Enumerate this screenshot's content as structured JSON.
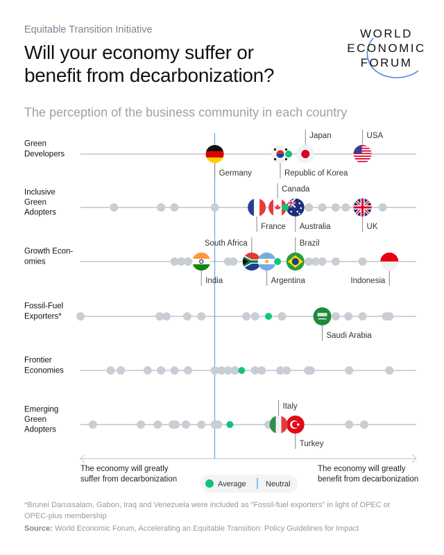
{
  "header": {
    "kicker": "Equitable Transition Initiative",
    "title_lines": [
      "Will your economy suffer or",
      "benefit from decarbonization?"
    ],
    "subtitle": "The perception of the business community in each country",
    "logo_lines": [
      "WORLD",
      "ECONOMIC",
      "FORUM"
    ]
  },
  "colors": {
    "dot": "#c9ced4",
    "average": "#10c47a",
    "neutral": "#4a9ad8",
    "rowline": "#b5b9be"
  },
  "chart_data": {
    "type": "scatter",
    "title": "",
    "xlim": [
      0,
      100
    ],
    "neutral": 40,
    "x_axis_left_label": [
      "The economy will greatly",
      "suffer from decarbonization"
    ],
    "x_axis_right_label": [
      "The economy will greatly",
      "benefit from decarbonization"
    ],
    "legend": {
      "average": "Average",
      "neutral": "Neutral"
    },
    "rows": [
      {
        "label": [
          "Green",
          "Developers"
        ],
        "average": 62,
        "others": [],
        "countries": [
          {
            "name": "Germany",
            "flag": "de",
            "x": 40,
            "label": "below-right"
          },
          {
            "name": "Republic of Korea",
            "flag": "kr",
            "x": 59.5,
            "label": "below-right"
          },
          {
            "name": "Japan",
            "flag": "jp",
            "x": 67,
            "label": "above-right"
          },
          {
            "name": "USA",
            "flag": "us",
            "x": 84,
            "label": "above-right"
          }
        ]
      },
      {
        "label": [
          "Inclusive",
          "Green",
          "Adopters"
        ],
        "average": 61,
        "others": [
          10,
          24,
          28,
          40,
          68,
          72,
          76,
          79,
          90
        ],
        "countries": [
          {
            "name": "France",
            "flag": "fr",
            "x": 52.5,
            "label": "below-right"
          },
          {
            "name": "Canada",
            "flag": "ca",
            "x": 58.7,
            "label": "above-right"
          },
          {
            "name": "Australia",
            "flag": "au",
            "x": 64,
            "label": "below-right"
          },
          {
            "name": "UK",
            "flag": "gb",
            "x": 84,
            "label": "below-right"
          }
        ]
      },
      {
        "label": [
          "Growth Econ-",
          "omies"
        ],
        "average": 58.7,
        "others": [
          28,
          30,
          32,
          44,
          45.5,
          68,
          70,
          72,
          76,
          84
        ],
        "countries": [
          {
            "name": "India",
            "flag": "in",
            "x": 36,
            "label": "below-right"
          },
          {
            "name": "South Africa",
            "flag": "za",
            "x": 51,
            "label": "above-left"
          },
          {
            "name": "Argentina",
            "flag": "ar",
            "x": 55.5,
            "label": "below-right"
          },
          {
            "name": "Brazil",
            "flag": "br",
            "x": 64,
            "label": "above-right"
          },
          {
            "name": "Indonesia",
            "flag": "id",
            "x": 92,
            "label": "below-left"
          }
        ]
      },
      {
        "label": [
          "Fossil-Fuel",
          "Exporters*"
        ],
        "average": 56,
        "others": [
          0,
          23.6,
          25.6,
          31.8,
          36,
          49.4,
          52,
          60,
          76,
          79.8,
          84,
          91,
          92
        ],
        "countries": [
          {
            "name": "Saudi Arabia",
            "flag": "sa",
            "x": 72,
            "label": "below-right"
          }
        ]
      },
      {
        "label": [
          "Frontier",
          "Economies"
        ],
        "average": 48,
        "others": [
          9,
          12,
          20,
          24,
          28,
          32,
          40,
          42,
          44,
          46,
          52,
          54,
          59.5,
          61.4,
          67.8,
          68.6,
          80,
          92
        ],
        "countries": []
      },
      {
        "label": [
          "Emerging",
          "Green",
          "Adopters"
        ],
        "average": 44.5,
        "others": [
          3.7,
          18,
          23,
          27.5,
          28.3,
          31.4,
          36,
          40,
          41,
          56,
          80,
          84.5
        ],
        "countries": [
          {
            "name": "Italy",
            "flag": "it",
            "x": 59,
            "label": "above-right"
          },
          {
            "name": "Turkey",
            "flag": "tr",
            "x": 64,
            "label": "below-right"
          }
        ]
      }
    ]
  },
  "footer": {
    "footnote_lines": [
      "*Brunei Darussalam, Gabon, Iraq and Venezuela were included as \"Fossil-fuel exporters\" in light of OPEC or",
      "OPEC-plus membership"
    ],
    "source_label": "Source:",
    "source_text": " World Economic Forum, Accelerating an Equitable Transition: Policy Guidelines for Impact"
  }
}
